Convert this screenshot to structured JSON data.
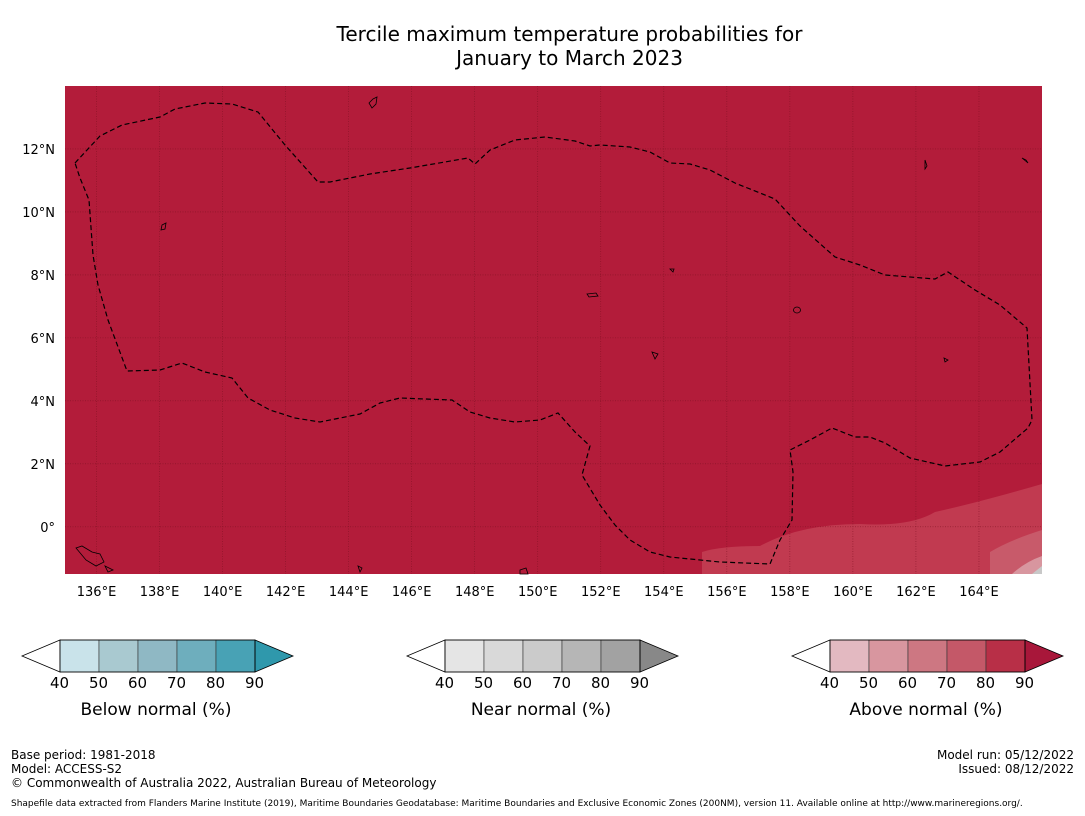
{
  "title_line1": "Tercile maximum temperature probabilities for",
  "title_line2": "January to March 2023",
  "map": {
    "lon_range": [
      135,
      166
    ],
    "lat_range": [
      -1.5,
      14
    ],
    "lon_ticks": [
      "136°E",
      "138°E",
      "140°E",
      "142°E",
      "144°E",
      "146°E",
      "148°E",
      "150°E",
      "152°E",
      "154°E",
      "156°E",
      "158°E",
      "160°E",
      "162°E",
      "164°E"
    ],
    "lat_ticks": [
      "0°",
      "2°N",
      "4°N",
      "6°N",
      "8°N",
      "10°N",
      "12°N"
    ],
    "fill_category": "Above normal",
    "fill_band": "80-90",
    "colors": {
      "above_80_90": "#b31c3a",
      "above_70_80": "#c13a50",
      "above_60_70": "#c85a6a",
      "land_gray": "#c8c8c8"
    }
  },
  "legends": [
    {
      "title": "Below normal (%)",
      "ticks": [
        "40",
        "50",
        "60",
        "70",
        "80",
        "90"
      ],
      "colors": [
        "#ffffff",
        "#c9e3ea",
        "#a9c9d0",
        "#8fb8c4",
        "#6eaebd",
        "#48a2b5",
        "#2f98ac"
      ]
    },
    {
      "title": "Near normal (%)",
      "ticks": [
        "40",
        "50",
        "60",
        "70",
        "80",
        "90"
      ],
      "colors": [
        "#ffffff",
        "#e5e5e5",
        "#d9d9d9",
        "#cbcbcb",
        "#b6b6b6",
        "#a2a2a2",
        "#888888"
      ]
    },
    {
      "title": "Above normal (%)",
      "ticks": [
        "40",
        "50",
        "60",
        "70",
        "80",
        "90"
      ],
      "colors": [
        "#ffffff",
        "#e3b9c1",
        "#d8969f",
        "#cd7782",
        "#c45868",
        "#b82f47",
        "#a8173a"
      ]
    }
  ],
  "footer": {
    "base_period": "Base period: 1981-2018",
    "model": "Model: ACCESS-S2",
    "copyright": "© Commonwealth of Australia 2022, Australian Bureau of Meteorology",
    "model_run": "Model run: 05/12/2022",
    "issued": "Issued: 08/12/2022",
    "shapefile": "Shapefile data extracted from Flanders Marine Institute (2019), Maritime Boundaries Geodatabase: Maritime Boundaries and Exclusive Economic Zones (200NM), version 11. Available online at http://www.marineregions.org/."
  }
}
